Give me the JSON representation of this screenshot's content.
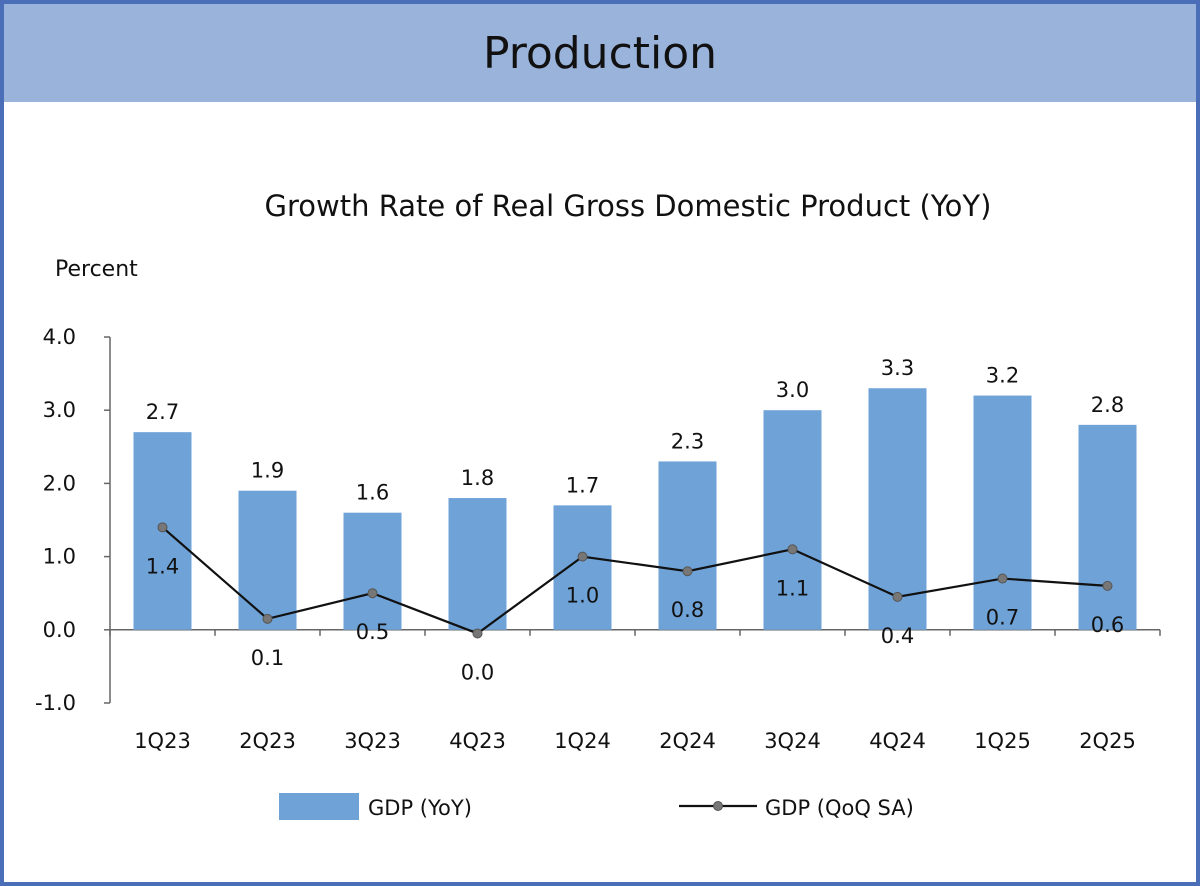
{
  "header": {
    "title": "Production"
  },
  "colors": {
    "bar": "#6fa3d8",
    "line": "#111111",
    "marker": "#777777",
    "axis": "#666666"
  },
  "chart_data": {
    "type": "bar",
    "title": "Growth Rate of Real Gross Domestic Product (YoY)",
    "ylabel": "Percent",
    "xlabel": "",
    "ylim": [
      -1.0,
      4.0
    ],
    "yticks": [
      "4.0",
      "3.0",
      "2.0",
      "1.0",
      "0.0",
      "-1.0"
    ],
    "categories": [
      "1Q23",
      "2Q23",
      "3Q23",
      "4Q23",
      "1Q24",
      "2Q24",
      "3Q24",
      "4Q24",
      "1Q25",
      "2Q25"
    ],
    "series": [
      {
        "name": "GDP (YoY)",
        "type": "bar",
        "values": [
          2.7,
          1.9,
          1.6,
          1.8,
          1.7,
          2.3,
          3.0,
          3.3,
          3.2,
          2.8
        ],
        "labels": [
          "2.7",
          "1.9",
          "1.6",
          "1.8",
          "1.7",
          "2.3",
          "3.0",
          "3.3",
          "3.2",
          "2.8"
        ]
      },
      {
        "name": "GDP (QoQ SA)",
        "type": "line",
        "values": [
          1.4,
          0.15,
          0.5,
          -0.05,
          1.0,
          0.8,
          1.1,
          0.45,
          0.7,
          0.6
        ],
        "labels": [
          "1.4",
          "0.1",
          "0.5",
          "0.0",
          "1.0",
          "0.8",
          "1.1",
          "0.4",
          "0.7",
          "0.6"
        ]
      }
    ],
    "legend": "bottom",
    "grid": false
  }
}
